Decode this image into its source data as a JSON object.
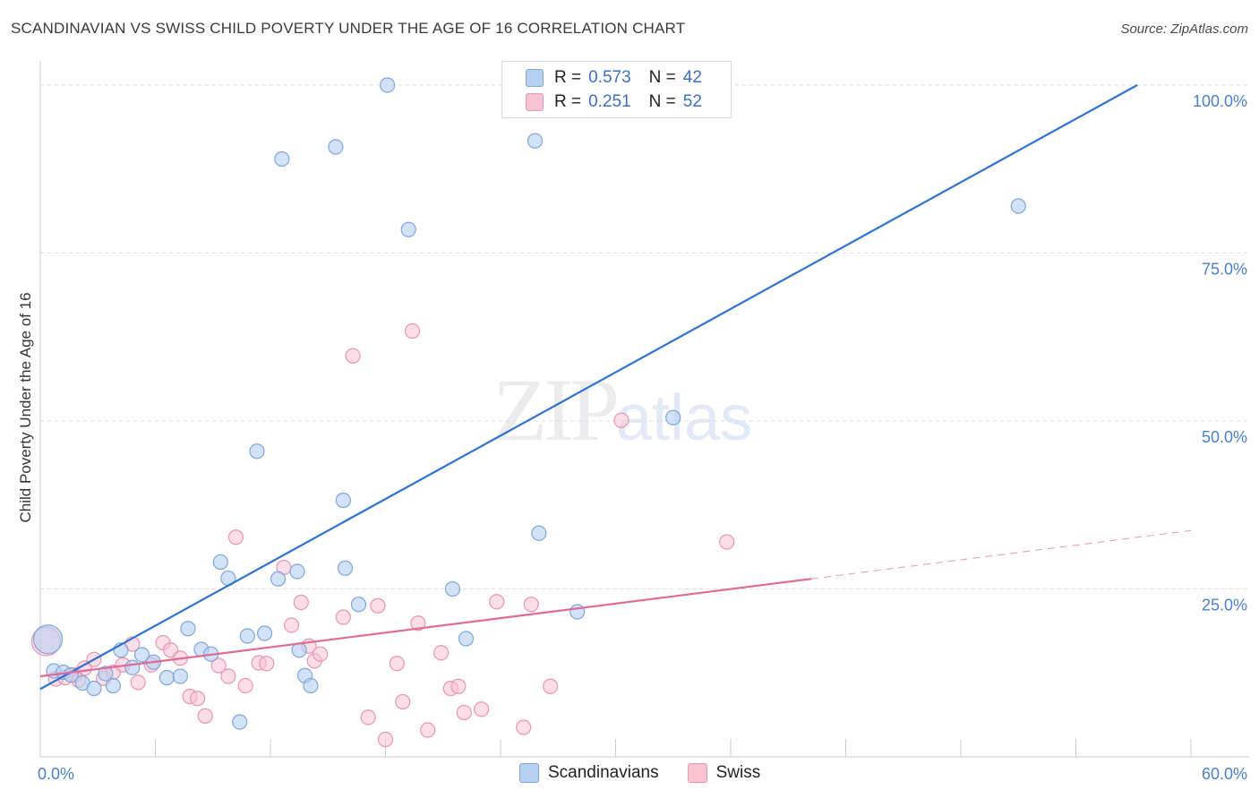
{
  "header": {
    "title": "SCANDINAVIAN VS SWISS CHILD POVERTY UNDER THE AGE OF 16 CORRELATION CHART",
    "source": "Source: ZipAtlas.com"
  },
  "watermark": {
    "zip": "ZIP",
    "atlas": "atlas"
  },
  "legend_top": {
    "rows": [
      {
        "r_label": "R =",
        "r_value": "0.573",
        "n_label": "N =",
        "n_value": "42"
      },
      {
        "r_label": "R =",
        "r_value": "0.251",
        "n_label": "N =",
        "n_value": "52"
      }
    ]
  },
  "legend_bottom": {
    "series1": "Scandinavians",
    "series2": "Swiss"
  },
  "colors": {
    "blue_fill": "#b6d0f2",
    "blue_stroke": "#7fa6dc",
    "blue_line": "#2f73cf",
    "pink_fill": "#f8c3d3",
    "pink_stroke": "#eb95b2",
    "pink_line": "#e06a98",
    "grid": "#dddddd",
    "tick": "#4a7fd0"
  },
  "chart_data": {
    "type": "scatter",
    "title": "SCANDINAVIAN VS SWISS CHILD POVERTY UNDER THE AGE OF 16 CORRELATION CHART",
    "xlabel": "",
    "ylabel": "Child Poverty Under the Age of 16",
    "xlim": [
      0,
      60
    ],
    "ylim": [
      0,
      100
    ],
    "x_ticks": [
      "0.0%",
      "60.0%"
    ],
    "y_ticks": [
      "25.0%",
      "50.0%",
      "75.0%",
      "100.0%"
    ],
    "y_tick_values": [
      25,
      50,
      75,
      100
    ],
    "grid": true,
    "legend_position": "top-center",
    "series": [
      {
        "name": "Scandinavians",
        "color": "#b6d0f2",
        "r": 0.573,
        "n": 42,
        "trend": {
          "x": [
            0,
            57.2
          ],
          "y": [
            10.1,
            100
          ]
        },
        "points": [
          [
            0.4,
            17.5
          ],
          [
            0.7,
            12.8
          ],
          [
            1.2,
            12.6
          ],
          [
            1.6,
            12.2
          ],
          [
            2.2,
            11.0
          ],
          [
            2.8,
            10.2
          ],
          [
            3.4,
            12.4
          ],
          [
            3.8,
            10.6
          ],
          [
            4.2,
            15.9
          ],
          [
            4.8,
            13.3
          ],
          [
            5.3,
            15.2
          ],
          [
            5.9,
            14.1
          ],
          [
            6.6,
            11.8
          ],
          [
            7.3,
            12.0
          ],
          [
            7.7,
            19.1
          ],
          [
            8.4,
            16.0
          ],
          [
            8.9,
            15.3
          ],
          [
            9.4,
            29.0
          ],
          [
            9.8,
            26.6
          ],
          [
            10.4,
            5.2
          ],
          [
            10.8,
            18.0
          ],
          [
            11.3,
            45.5
          ],
          [
            11.7,
            18.4
          ],
          [
            12.4,
            26.5
          ],
          [
            12.6,
            89.0
          ],
          [
            13.4,
            27.6
          ],
          [
            13.5,
            15.9
          ],
          [
            13.8,
            12.1
          ],
          [
            14.1,
            10.6
          ],
          [
            15.4,
            90.8
          ],
          [
            15.8,
            38.2
          ],
          [
            15.9,
            28.1
          ],
          [
            16.6,
            22.7
          ],
          [
            18.1,
            100
          ],
          [
            19.2,
            78.5
          ],
          [
            21.5,
            25.0
          ],
          [
            22.2,
            17.6
          ],
          [
            25.8,
            91.7
          ],
          [
            26.0,
            33.3
          ],
          [
            28.0,
            21.6
          ],
          [
            51.0,
            82.0
          ],
          [
            33.0,
            50.5
          ]
        ]
      },
      {
        "name": "Swiss",
        "color": "#f8c3d3",
        "r": 0.251,
        "n": 52,
        "trend": {
          "x": [
            0,
            40.2
          ],
          "y": [
            12.0,
            26.5
          ]
        },
        "trend_dashed": {
          "x": [
            40.2,
            60
          ],
          "y": [
            26.5,
            33.7
          ]
        },
        "points": [
          [
            0.3,
            17.2
          ],
          [
            0.8,
            11.6
          ],
          [
            1.8,
            12.2
          ],
          [
            2.3,
            13.2
          ],
          [
            2.8,
            14.5
          ],
          [
            3.3,
            11.7
          ],
          [
            3.8,
            12.6
          ],
          [
            4.3,
            13.7
          ],
          [
            4.8,
            16.8
          ],
          [
            5.1,
            11.1
          ],
          [
            5.8,
            13.7
          ],
          [
            6.4,
            17.0
          ],
          [
            6.8,
            15.9
          ],
          [
            7.3,
            14.7
          ],
          [
            7.8,
            9.0
          ],
          [
            8.2,
            8.7
          ],
          [
            8.6,
            6.1
          ],
          [
            9.3,
            13.6
          ],
          [
            9.8,
            12.0
          ],
          [
            10.2,
            32.7
          ],
          [
            10.7,
            10.6
          ],
          [
            11.4,
            14.0
          ],
          [
            11.8,
            13.9
          ],
          [
            12.7,
            28.2
          ],
          [
            13.1,
            19.6
          ],
          [
            13.6,
            23.0
          ],
          [
            14.0,
            16.5
          ],
          [
            14.3,
            14.3
          ],
          [
            14.6,
            15.3
          ],
          [
            15.8,
            20.8
          ],
          [
            16.3,
            59.7
          ],
          [
            17.1,
            5.9
          ],
          [
            17.6,
            22.5
          ],
          [
            18.0,
            2.6
          ],
          [
            18.6,
            13.9
          ],
          [
            18.9,
            8.2
          ],
          [
            19.4,
            63.4
          ],
          [
            19.7,
            19.9
          ],
          [
            20.2,
            4.0
          ],
          [
            20.9,
            15.5
          ],
          [
            21.4,
            10.2
          ],
          [
            21.8,
            10.5
          ],
          [
            22.1,
            6.6
          ],
          [
            23.0,
            7.1
          ],
          [
            23.8,
            23.1
          ],
          [
            25.2,
            4.4
          ],
          [
            25.6,
            22.7
          ],
          [
            26.6,
            10.5
          ],
          [
            30.3,
            50.1
          ],
          [
            35.8,
            32.0
          ],
          [
            1.3,
            11.8
          ],
          [
            2.0,
            11.4
          ]
        ]
      }
    ]
  }
}
